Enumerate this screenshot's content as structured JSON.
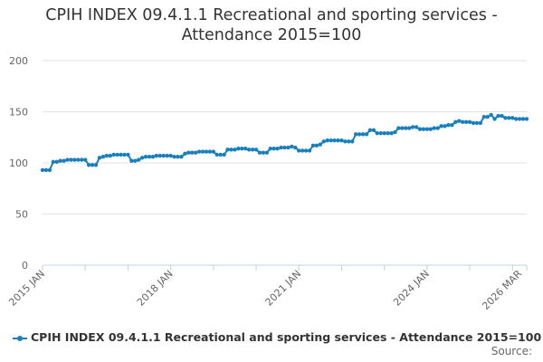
{
  "chart_data": {
    "type": "line",
    "title_line1": "CPIH INDEX 09.4.1.1 Recreational and sporting services -",
    "title_line2": "Attendance 2015=100",
    "ylim": [
      0,
      200
    ],
    "y_ticks": [
      "0",
      "50",
      "100",
      "150",
      "200"
    ],
    "y_tick_values": [
      0,
      50,
      100,
      150,
      200
    ],
    "x_ticks": [
      {
        "label": "2015 JAN",
        "index": 0
      },
      {
        "label": "2018 JAN",
        "index": 36
      },
      {
        "label": "2021 JAN",
        "index": 72
      },
      {
        "label": "2024 JAN",
        "index": 108
      },
      {
        "label": "2026 MAR",
        "index": 134
      }
    ],
    "grid": "horizontal",
    "series": [
      {
        "name": "CPIH INDEX 09.4.1.1 Recreational and sporting services - Attendance 2015=100",
        "color": "#1a7fbd",
        "start": "2015 JAN",
        "values": [
          93,
          93,
          93,
          101,
          101,
          102,
          102,
          103,
          103,
          103,
          103,
          103,
          103,
          98,
          98,
          98,
          105,
          106,
          107,
          107,
          108,
          108,
          108,
          108,
          108,
          102,
          102,
          103,
          105,
          106,
          106,
          106,
          107,
          107,
          107,
          107,
          107,
          106,
          106,
          106,
          109,
          110,
          110,
          110,
          111,
          111,
          111,
          111,
          111,
          108,
          108,
          108,
          113,
          113,
          113,
          114,
          114,
          114,
          113,
          113,
          113,
          110,
          110,
          110,
          114,
          114,
          114,
          115,
          115,
          115,
          116,
          115,
          112,
          112,
          112,
          112,
          117,
          117,
          118,
          121,
          122,
          122,
          122,
          122,
          122,
          121,
          121,
          121,
          128,
          128,
          128,
          128,
          132,
          132,
          129,
          129,
          129,
          129,
          129,
          130,
          134,
          134,
          134,
          134,
          135,
          135,
          133,
          133,
          133,
          133,
          134,
          134,
          136,
          136,
          137,
          137,
          140,
          141,
          140,
          140,
          140,
          139,
          139,
          139,
          145,
          145,
          147,
          143,
          146,
          146,
          144,
          144,
          144,
          143,
          143,
          143,
          143
        ]
      }
    ]
  },
  "legend": {
    "label": "CPIH INDEX 09.4.1.1 Recreational and sporting services - Attendance 2015=100"
  },
  "source": {
    "label": "Source:"
  }
}
